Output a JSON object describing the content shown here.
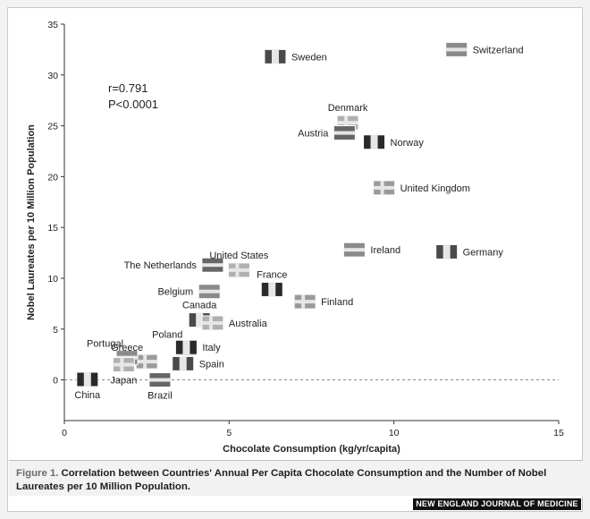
{
  "chart_data": {
    "type": "scatter",
    "xlabel": "Chocolate Consumption (kg/yr/capita)",
    "ylabel": "Nobel Laureates per 10 Million Population",
    "xlim": [
      0,
      15
    ],
    "ylim": [
      -4,
      35
    ],
    "xticks": [
      "0",
      "5",
      "10",
      "15"
    ],
    "yticks": [
      "0",
      "5",
      "10",
      "15",
      "20",
      "25",
      "30",
      "35"
    ],
    "grid": false,
    "reference_line_y": 0,
    "stats": [
      "r=0.791",
      "P<0.0001"
    ],
    "points": [
      {
        "country": "Switzerland",
        "x": 11.9,
        "y": 32.5,
        "label_side": "right"
      },
      {
        "country": "Sweden",
        "x": 6.4,
        "y": 31.8,
        "label_side": "right"
      },
      {
        "country": "Denmark",
        "x": 8.6,
        "y": 25.3,
        "label_side": "above"
      },
      {
        "country": "Austria",
        "x": 8.5,
        "y": 24.3,
        "label_side": "left"
      },
      {
        "country": "Norway",
        "x": 9.4,
        "y": 23.4,
        "label_side": "right"
      },
      {
        "country": "United Kingdom",
        "x": 9.7,
        "y": 18.9,
        "label_side": "right"
      },
      {
        "country": "Ireland",
        "x": 8.8,
        "y": 12.8,
        "label_side": "right"
      },
      {
        "country": "Germany",
        "x": 11.6,
        "y": 12.6,
        "label_side": "right"
      },
      {
        "country": "United States",
        "x": 5.3,
        "y": 10.8,
        "label_side": "above"
      },
      {
        "country": "The Netherlands",
        "x": 4.5,
        "y": 11.3,
        "label_side": "left"
      },
      {
        "country": "France",
        "x": 6.3,
        "y": 8.9,
        "label_side": "above"
      },
      {
        "country": "Finland",
        "x": 7.3,
        "y": 7.7,
        "label_side": "right"
      },
      {
        "country": "Belgium",
        "x": 4.4,
        "y": 8.7,
        "label_side": "left"
      },
      {
        "country": "Canada",
        "x": 4.1,
        "y": 5.9,
        "label_side": "above"
      },
      {
        "country": "Australia",
        "x": 4.5,
        "y": 5.6,
        "label_side": "right"
      },
      {
        "country": "Poland",
        "x": 3.7,
        "y": 3.1,
        "label_side": "above-left"
      },
      {
        "country": "Italy",
        "x": 3.7,
        "y": 3.2,
        "label_side": "right"
      },
      {
        "country": "Greece",
        "x": 2.5,
        "y": 1.8,
        "label_side": "above-left"
      },
      {
        "country": "Portugal",
        "x": 1.9,
        "y": 2.2,
        "label_side": "above-left"
      },
      {
        "country": "Spain",
        "x": 3.6,
        "y": 1.6,
        "label_side": "right"
      },
      {
        "country": "Japan",
        "x": 1.8,
        "y": 1.5,
        "label_side": "below"
      },
      {
        "country": "Brazil",
        "x": 2.9,
        "y": 0.0,
        "label_side": "below"
      },
      {
        "country": "China",
        "x": 0.7,
        "y": 0.05,
        "label_side": "below"
      }
    ]
  },
  "caption": {
    "figure_label": "Figure 1.",
    "text": "Correlation between Countries' Annual Per Capita Chocolate Consumption and the Number of Nobel Laureates per 10 Million Population."
  },
  "journal": "NEW ENGLAND JOURNAL OF MEDICINE"
}
